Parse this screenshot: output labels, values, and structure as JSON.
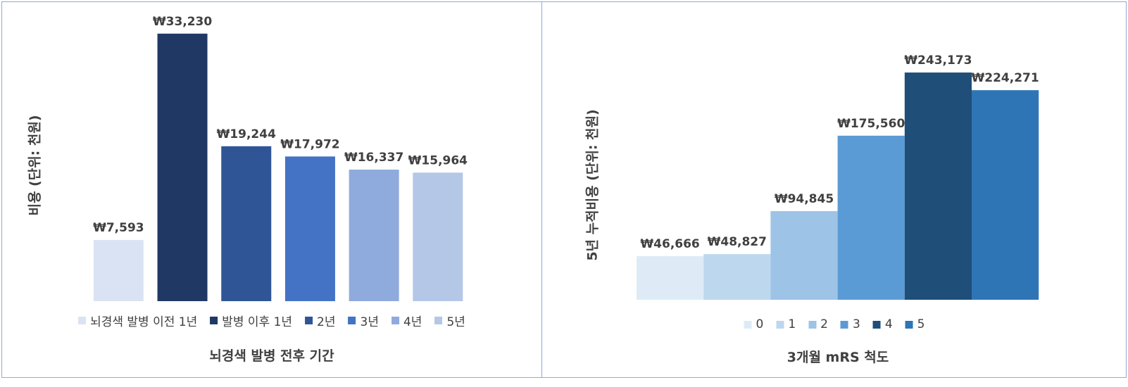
{
  "chart_data": [
    {
      "type": "bar",
      "xlabel": "뇌경색 발병 전후 기간",
      "ylabel": "비용 (단위: 천원)",
      "categories": [
        "뇌경색 발병 이전 1년",
        "발병 이후 1년",
        "2년",
        "3년",
        "4년",
        "5년"
      ],
      "values": [
        7593,
        33230,
        19244,
        17972,
        16337,
        15964
      ],
      "labels": [
        "₩7,593",
        "₩33,230",
        "₩19,244",
        "₩17,972",
        "₩16,337",
        "₩15,964"
      ],
      "colors": [
        "#dae3f3",
        "#203864",
        "#2f5597",
        "#4472c4",
        "#8faadc",
        "#b4c7e7"
      ],
      "ylim": [
        0,
        34000
      ],
      "grid": false,
      "legend_position": "bottom"
    },
    {
      "type": "bar",
      "xlabel": "3개월 mRS 척도",
      "ylabel": "5년 누적비용 (단위: 천원)",
      "categories": [
        "0",
        "1",
        "2",
        "3",
        "4",
        "5"
      ],
      "values": [
        46666,
        48827,
        94845,
        175560,
        243173,
        224271
      ],
      "labels": [
        "₩46,666",
        "₩48,827",
        "₩94,845",
        "₩175,560",
        "₩243,173",
        "₩224,271"
      ],
      "colors": [
        "#deebf7",
        "#bdd7ee",
        "#9dc3e6",
        "#5b9bd5",
        "#1f4e79",
        "#2e75b6"
      ],
      "ylim": [
        0,
        250000
      ],
      "grid": false,
      "legend_position": "bottom"
    }
  ]
}
